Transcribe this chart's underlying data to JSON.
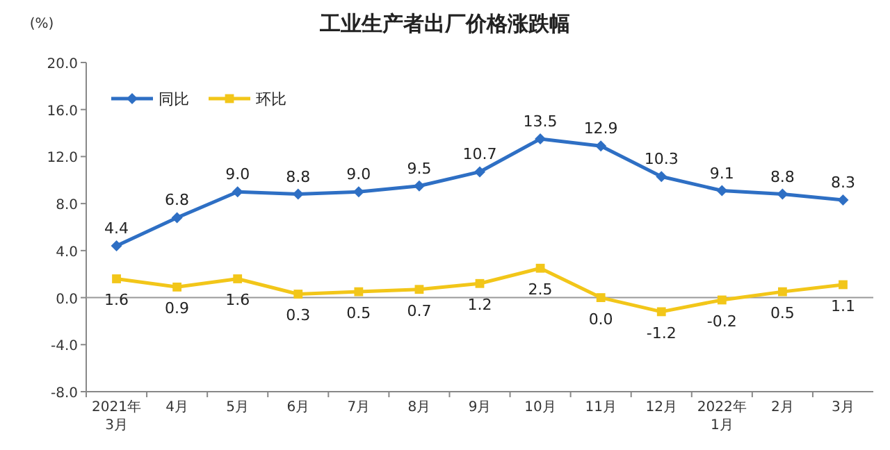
{
  "chart_data": {
    "type": "line",
    "title": "工业生产者出厂价格涨跌幅",
    "ylabel": "(%)",
    "categories": [
      "2021年\n3月",
      "4月",
      "5月",
      "6月",
      "7月",
      "8月",
      "9月",
      "10月",
      "11月",
      "12月",
      "2022年\n1月",
      "2月",
      "3月"
    ],
    "series": [
      {
        "name": "同比",
        "color": "#2e6fc4",
        "marker": "diamond",
        "values": [
          4.4,
          6.8,
          9.0,
          8.8,
          9.0,
          9.5,
          10.7,
          13.5,
          12.9,
          10.3,
          9.1,
          8.8,
          8.3
        ],
        "value_labels": [
          "4.4",
          "6.8",
          "9.0",
          "8.8",
          "9.0",
          "9.5",
          "10.7",
          "13.5",
          "12.9",
          "10.3",
          "9.1",
          "8.8",
          "8.3"
        ]
      },
      {
        "name": "环比",
        "color": "#f2c619",
        "marker": "square",
        "values": [
          1.6,
          0.9,
          1.6,
          0.3,
          0.5,
          0.7,
          1.2,
          2.5,
          0.0,
          -1.2,
          -0.2,
          0.5,
          1.1
        ],
        "value_labels": [
          "1.6",
          "0.9",
          "1.6",
          "0.3",
          "0.5",
          "0.7",
          "1.2",
          "2.5",
          "0.0",
          "-1.2",
          "-0.2",
          "0.5",
          "1.1"
        ]
      }
    ],
    "ylim": [
      -8,
      20
    ],
    "yticks": [
      {
        "value": -8,
        "label": "-8.0"
      },
      {
        "value": -4,
        "label": "-4.0"
      },
      {
        "value": 0,
        "label": "0.0"
      },
      {
        "value": 4,
        "label": "4.0"
      },
      {
        "value": 8,
        "label": "8.0"
      },
      {
        "value": 12,
        "label": "12.0"
      },
      {
        "value": 16,
        "label": "16.0"
      },
      {
        "value": 20,
        "label": "20.0"
      }
    ],
    "ref_lines": [
      {
        "axis": "y",
        "value": 0,
        "color": "#999999"
      }
    ],
    "legend": "top left",
    "line_style": "solid"
  }
}
